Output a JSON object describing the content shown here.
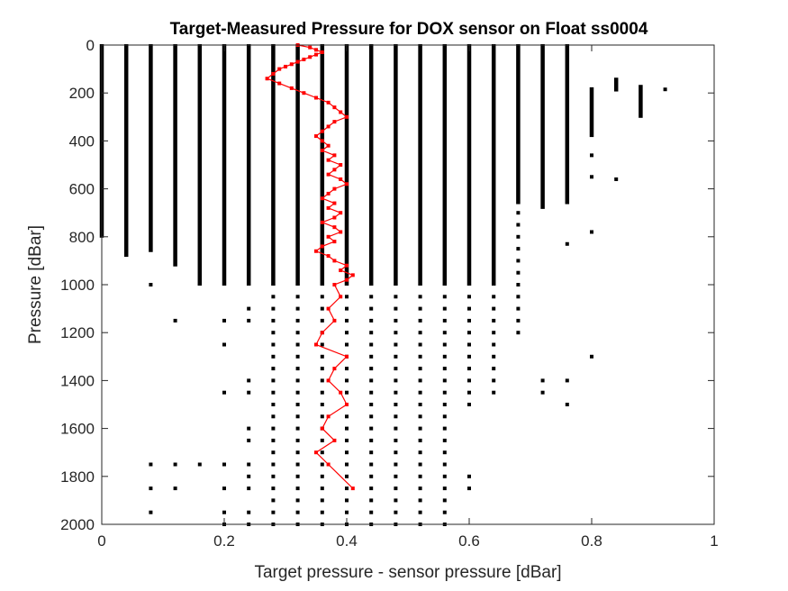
{
  "chart_data": {
    "type": "scatter",
    "title": "Target-Measured Pressure for DOX sensor on Float ss0004",
    "xlabel": "Target pressure - sensor pressure [dBar]",
    "ylabel": "Pressure [dBar]",
    "xlim": [
      0,
      1
    ],
    "ylim": [
      0,
      2000
    ],
    "y_reversed": true,
    "grid": false,
    "xticks": [
      0,
      0.2,
      0.4,
      0.6,
      0.8,
      1
    ],
    "xtick_labels": [
      "0",
      "0.2",
      "0.4",
      "0.6",
      "0.8",
      "1"
    ],
    "yticks": [
      0,
      200,
      400,
      600,
      800,
      1000,
      1200,
      1400,
      1600,
      1800,
      2000
    ],
    "ytick_labels": [
      "0",
      "200",
      "400",
      "600",
      "800",
      "1000",
      "1200",
      "1400",
      "1600",
      "1800",
      "2000"
    ],
    "colors": {
      "scatter": "#000000",
      "mean_line": "#ff0000",
      "axes": "#262626"
    },
    "scatter_columns": [
      {
        "x": 0.0,
        "dense": [
          [
            0,
            800
          ]
        ],
        "sparse": []
      },
      {
        "x": 0.04,
        "dense": [
          [
            0,
            880
          ]
        ],
        "sparse": []
      },
      {
        "x": 0.08,
        "dense": [
          [
            0,
            860
          ]
        ],
        "sparse": [
          1000,
          1750,
          1850,
          1950
        ]
      },
      {
        "x": 0.12,
        "dense": [
          [
            0,
            920
          ]
        ],
        "sparse": [
          1150,
          1750,
          1850
        ]
      },
      {
        "x": 0.16,
        "dense": [
          [
            0,
            1000
          ]
        ],
        "sparse": [
          1750
        ]
      },
      {
        "x": 0.2,
        "dense": [
          [
            0,
            1000
          ]
        ],
        "sparse": [
          1150,
          1250,
          1450,
          1750,
          1850,
          1950,
          2000
        ]
      },
      {
        "x": 0.24,
        "dense": [
          [
            0,
            1000
          ]
        ],
        "sparse": [
          1100,
          1150,
          1400,
          1450,
          1600,
          1650,
          1750,
          1800,
          1850,
          1950,
          2000
        ]
      },
      {
        "x": 0.28,
        "dense": [
          [
            0,
            1000
          ]
        ],
        "sparse": [
          1050,
          1100,
          1150,
          1200,
          1250,
          1300,
          1350,
          1400,
          1450,
          1500,
          1550,
          1600,
          1650,
          1700,
          1750,
          1800,
          1850,
          1900,
          1950,
          2000
        ]
      },
      {
        "x": 0.32,
        "dense": [
          [
            0,
            1000
          ]
        ],
        "sparse": [
          1050,
          1100,
          1150,
          1200,
          1250,
          1300,
          1350,
          1400,
          1450,
          1500,
          1550,
          1600,
          1650,
          1700,
          1750,
          1800,
          1850,
          1900,
          1950,
          2000
        ]
      },
      {
        "x": 0.36,
        "dense": [
          [
            0,
            1000
          ]
        ],
        "sparse": [
          1050,
          1100,
          1150,
          1200,
          1250,
          1300,
          1350,
          1400,
          1450,
          1500,
          1550,
          1600,
          1650,
          1700,
          1750,
          1800,
          1850,
          1900,
          1950,
          2000
        ]
      },
      {
        "x": 0.4,
        "dense": [
          [
            0,
            1000
          ]
        ],
        "sparse": [
          1050,
          1100,
          1150,
          1200,
          1250,
          1300,
          1350,
          1400,
          1450,
          1500,
          1550,
          1600,
          1650,
          1700,
          1750,
          1800,
          1850,
          1900,
          1950,
          2000
        ]
      },
      {
        "x": 0.44,
        "dense": [
          [
            0,
            1000
          ]
        ],
        "sparse": [
          1050,
          1100,
          1150,
          1200,
          1250,
          1300,
          1350,
          1400,
          1450,
          1500,
          1550,
          1600,
          1650,
          1700,
          1750,
          1800,
          1850,
          1900,
          1950,
          2000
        ]
      },
      {
        "x": 0.48,
        "dense": [
          [
            0,
            1000
          ]
        ],
        "sparse": [
          1050,
          1100,
          1150,
          1200,
          1250,
          1300,
          1350,
          1400,
          1450,
          1500,
          1550,
          1600,
          1650,
          1700,
          1750,
          1800,
          1850,
          1900,
          1950,
          2000
        ]
      },
      {
        "x": 0.52,
        "dense": [
          [
            0,
            1000
          ]
        ],
        "sparse": [
          1050,
          1100,
          1150,
          1200,
          1250,
          1300,
          1350,
          1400,
          1450,
          1500,
          1550,
          1600,
          1650,
          1700,
          1750,
          1800,
          1850,
          1900,
          1950,
          2000
        ]
      },
      {
        "x": 0.56,
        "dense": [
          [
            0,
            1000
          ]
        ],
        "sparse": [
          1050,
          1100,
          1150,
          1200,
          1250,
          1300,
          1350,
          1400,
          1450,
          1500,
          1550,
          1600,
          1650,
          1700,
          1750,
          1800,
          1850,
          1900,
          1950,
          2000
        ]
      },
      {
        "x": 0.6,
        "dense": [
          [
            0,
            1000
          ]
        ],
        "sparse": [
          1050,
          1100,
          1150,
          1200,
          1250,
          1300,
          1350,
          1400,
          1450,
          1500,
          1800,
          1850
        ]
      },
      {
        "x": 0.64,
        "dense": [
          [
            0,
            1000
          ]
        ],
        "sparse": [
          1050,
          1100,
          1150,
          1200,
          1250,
          1300,
          1350,
          1400,
          1450
        ]
      },
      {
        "x": 0.68,
        "dense": [
          [
            0,
            660
          ]
        ],
        "sparse": [
          700,
          750,
          800,
          850,
          900,
          950,
          1000,
          1050,
          1100,
          1150,
          1200
        ]
      },
      {
        "x": 0.72,
        "dense": [
          [
            0,
            680
          ]
        ],
        "sparse": [
          1400,
          1450
        ]
      },
      {
        "x": 0.76,
        "dense": [
          [
            0,
            660
          ]
        ],
        "sparse": [
          830,
          1400,
          1500
        ]
      },
      {
        "x": 0.8,
        "dense": [
          [
            180,
            380
          ]
        ],
        "sparse": [
          460,
          550,
          780,
          1300
        ]
      },
      {
        "x": 0.84,
        "dense": [
          [
            140,
            190
          ]
        ],
        "sparse": [
          560
        ]
      },
      {
        "x": 0.88,
        "dense": [
          [
            170,
            300
          ]
        ],
        "sparse": []
      },
      {
        "x": 0.92,
        "dense": [],
        "sparse": [
          185
        ]
      }
    ],
    "series": [
      {
        "name": "",
        "color": "#ff0000",
        "x": [
          0.32,
          0.34,
          0.35,
          0.36,
          0.35,
          0.34,
          0.33,
          0.32,
          0.31,
          0.3,
          0.29,
          0.28,
          0.27,
          0.29,
          0.31,
          0.33,
          0.35,
          0.37,
          0.38,
          0.39,
          0.4,
          0.38,
          0.37,
          0.36,
          0.35,
          0.36,
          0.37,
          0.36,
          0.38,
          0.37,
          0.39,
          0.38,
          0.37,
          0.39,
          0.4,
          0.38,
          0.37,
          0.36,
          0.38,
          0.37,
          0.39,
          0.38,
          0.36,
          0.38,
          0.39,
          0.37,
          0.38,
          0.36,
          0.35,
          0.37,
          0.38,
          0.4,
          0.39,
          0.41,
          0.4,
          0.38,
          0.39,
          0.37,
          0.38,
          0.36,
          0.35,
          0.4,
          0.38,
          0.37,
          0.39,
          0.4,
          0.37,
          0.36,
          0.38,
          0.35,
          0.37,
          0.41
        ],
        "y": [
          0,
          10,
          20,
          30,
          40,
          50,
          60,
          70,
          80,
          90,
          100,
          120,
          140,
          160,
          180,
          200,
          220,
          240,
          260,
          280,
          300,
          320,
          340,
          360,
          380,
          400,
          420,
          440,
          460,
          480,
          500,
          520,
          540,
          560,
          580,
          600,
          620,
          640,
          660,
          680,
          700,
          720,
          740,
          760,
          780,
          800,
          820,
          840,
          860,
          880,
          900,
          920,
          940,
          960,
          980,
          1000,
          1050,
          1100,
          1150,
          1200,
          1250,
          1300,
          1350,
          1400,
          1450,
          1500,
          1550,
          1600,
          1650,
          1700,
          1750,
          1850
        ]
      }
    ]
  }
}
